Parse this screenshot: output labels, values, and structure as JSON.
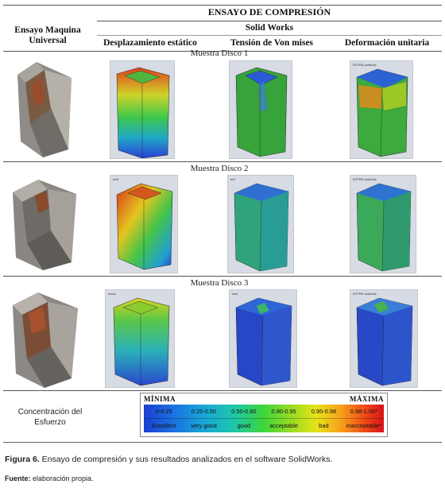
{
  "table": {
    "title": "ENSAYO DE COMPRESIÓN",
    "col_machine": "Ensayo Maquina Universal",
    "group_solidworks": "Solid Works",
    "col_displacement": "Desplazamiento estático",
    "col_vonmises": "Tensión de Von mises",
    "col_deformation": "Deformación unitaria",
    "samples": [
      {
        "label": "Muestra Disco 1",
        "tags": [
          "",
          "",
          "ESTRN  unitaria1"
        ]
      },
      {
        "label": "Muestra Disco 2",
        "tags": [
          "ent1",
          "es1",
          "ESTRN  unitaria1"
        ]
      },
      {
        "label": "Muestra Disco 3",
        "tags": [
          "ento1",
          "res1",
          "ESTRN  unitaria1"
        ]
      }
    ]
  },
  "scale": {
    "min_label": "MÍNIMA",
    "max_label": "MÁXIMA",
    "ranges": [
      "0-0.25",
      "0.25-0.50",
      "0.50-0.80",
      "0.80-0.95",
      "0.95-0.98",
      "0.98-1.00*"
    ],
    "ratings": [
      "Excellent",
      "very good",
      "good",
      "acceptable",
      "bad",
      "inacceptable*"
    ]
  },
  "row_label": "Concentración del Esfuerzo",
  "caption": {
    "prefix": "Figura 6.",
    "text": " Ensayo de compresión y sus resultados analizados en el software SolidWorks."
  },
  "source": {
    "prefix": "Fuente:",
    "text": " elaboración propia."
  }
}
